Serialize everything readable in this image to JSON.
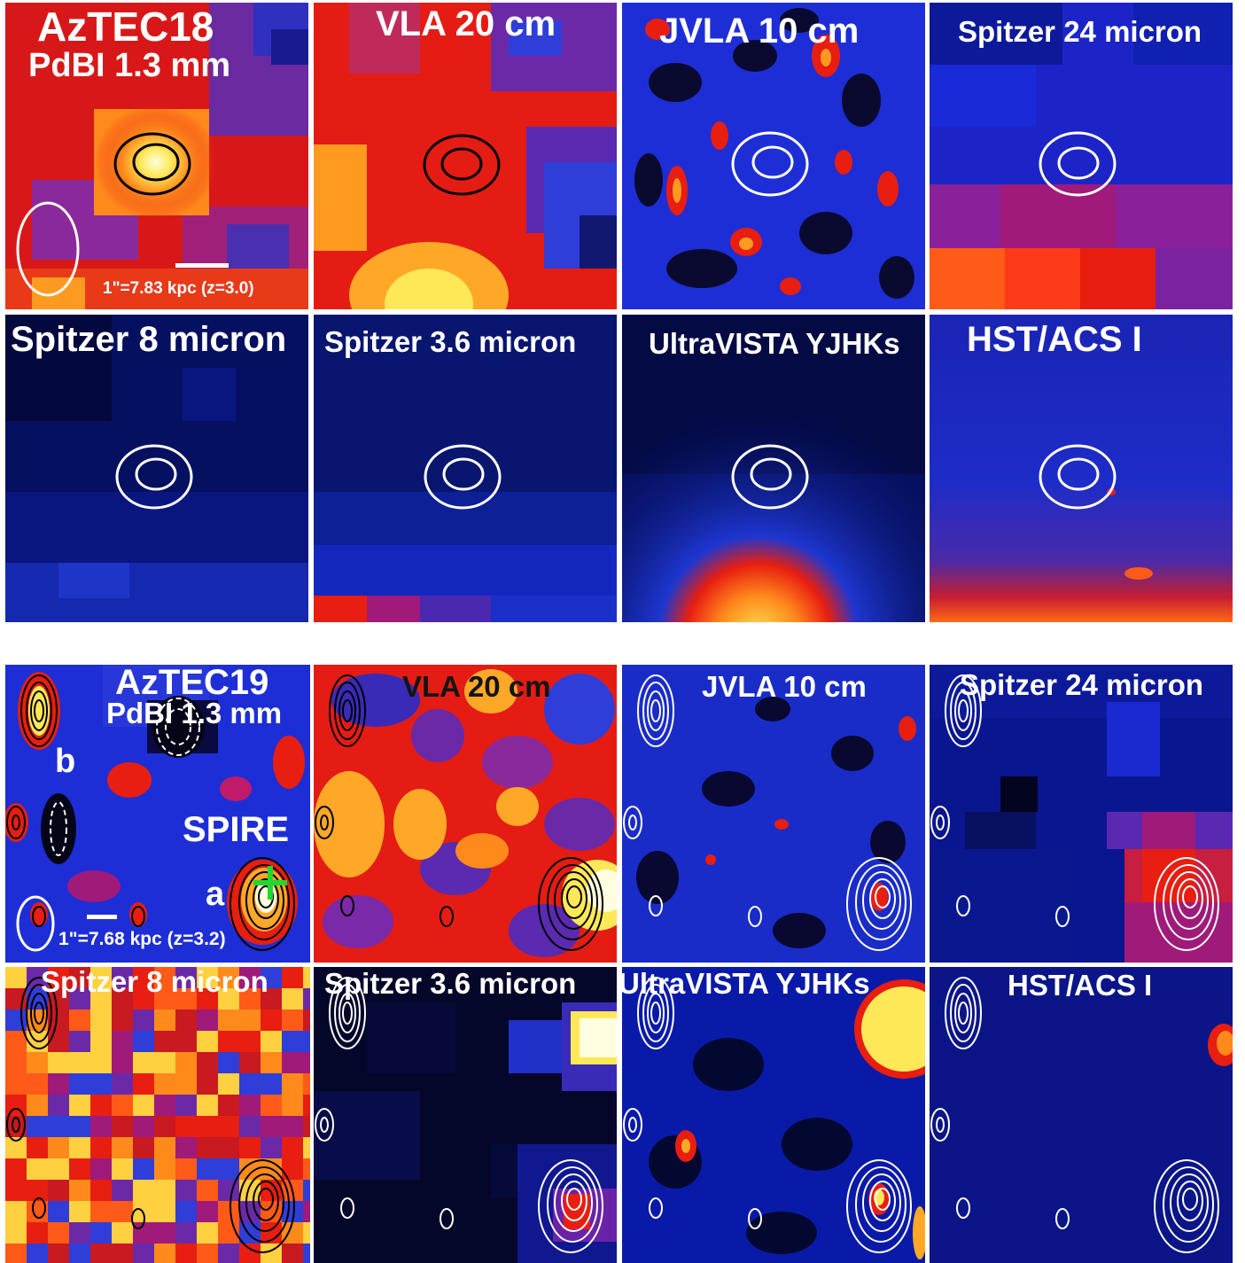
{
  "figure": {
    "top_block": {
      "source": "AzTEC18",
      "panels": [
        {
          "id": "p1",
          "title": "AzTEC18",
          "subtitle": "PdBI 1.3 mm",
          "scale_label": "1\"=7.83 kpc (z=3.0)",
          "contour_color": "black"
        },
        {
          "id": "p2",
          "title": "VLA 20 cm",
          "contour_color": "black"
        },
        {
          "id": "p3",
          "title": "JVLA 10 cm",
          "contour_color": "white"
        },
        {
          "id": "p4",
          "title": "Spitzer 24 micron",
          "contour_color": "white"
        },
        {
          "id": "p5",
          "title": "Spitzer 8 micron",
          "contour_color": "white"
        },
        {
          "id": "p6",
          "title": "Spitzer 3.6 micron",
          "contour_color": "white"
        },
        {
          "id": "p7",
          "title": "UltraVISTA YJHKs",
          "contour_color": "white"
        },
        {
          "id": "p8",
          "title": "HST/ACS I",
          "contour_color": "white"
        }
      ]
    },
    "bottom_block": {
      "source": "AzTEC19",
      "panels": [
        {
          "id": "q1",
          "title": "AzTEC19",
          "subtitle": "PdBI 1.3 mm",
          "marker_b": "b",
          "marker_a": "a",
          "spire_label": "SPIRE",
          "scale_label": "1\"=7.68 kpc (z=3.2)",
          "contour_color": "black"
        },
        {
          "id": "q2",
          "title": "VLA 20 cm",
          "contour_color": "black"
        },
        {
          "id": "q3",
          "title": "JVLA 10 cm",
          "contour_color": "white"
        },
        {
          "id": "q4",
          "title": "Spitzer 24 micron",
          "contour_color": "white"
        },
        {
          "id": "q5",
          "title": "Spitzer 8 micron",
          "contour_color": "black"
        },
        {
          "id": "q6",
          "title": "Spitzer 3.6 micron",
          "contour_color": "white"
        },
        {
          "id": "q7",
          "title": "UltraVISTA YJHKs",
          "contour_color": "white"
        },
        {
          "id": "q8",
          "title": "HST/ACS I",
          "contour_color": "white"
        }
      ]
    },
    "colors": {
      "background_deep": "#000a6e",
      "background_blue": "#1e2ed6",
      "emission_red": "#e81e10",
      "emission_yellow": "#ffe858",
      "spire_cross": "#20d830"
    }
  }
}
